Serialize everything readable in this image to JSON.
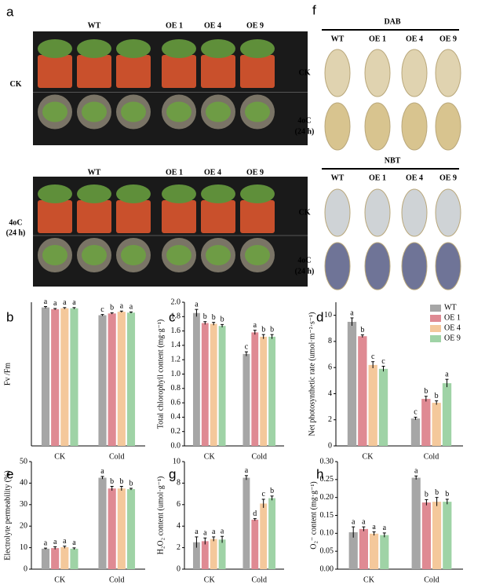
{
  "panel_a": {
    "label": "a",
    "genotypes": [
      "WT",
      "OE 1",
      "OE 4",
      "OE 9"
    ],
    "rows": [
      {
        "label": [
          "CK"
        ]
      },
      {
        "label": [
          "4oC",
          "(24 h)"
        ]
      }
    ]
  },
  "panel_f": {
    "label": "f",
    "genotypes": [
      "WT",
      "OE 1",
      "OE 4",
      "OE 9"
    ],
    "stains": [
      {
        "title": "DAB",
        "rows": [
          {
            "label": [
              "CK"
            ]
          },
          {
            "label": [
              "4oC",
              "(24 h)"
            ]
          }
        ]
      },
      {
        "title": "NBT",
        "rows": [
          {
            "label": [
              "CK"
            ]
          },
          {
            "label": [
              "4oC",
              "(24 h)"
            ]
          }
        ]
      }
    ]
  },
  "chart_data": [
    {
      "type": "bar",
      "panel_label": "b",
      "y_label": "Fv /Fm",
      "categories": [
        "CK",
        "Cold"
      ],
      "ylim": [
        0,
        0.83
      ],
      "series": [
        {
          "color": "#a6a6a6",
          "values": [
            0.8,
            0.755
          ],
          "errors": [
            0.005,
            0.004
          ],
          "letters": [
            "a",
            "c"
          ]
        },
        {
          "color": "#df8a93",
          "values": [
            0.79,
            0.765
          ],
          "errors": [
            0.004,
            0.004
          ],
          "letters": [
            "a",
            "b"
          ]
        },
        {
          "color": "#f4c89b",
          "values": [
            0.795,
            0.775
          ],
          "errors": [
            0.004,
            0.004
          ],
          "letters": [
            "a",
            "a"
          ]
        },
        {
          "color": "#9fd3a6",
          "values": [
            0.795,
            0.77
          ],
          "errors": [
            0.004,
            0.004
          ],
          "letters": [
            "a",
            "a"
          ]
        }
      ]
    },
    {
      "type": "bar",
      "panel_label": "c",
      "y_label": "Total chlorophyll content (mg·g⁻¹)",
      "categories": [
        "CK",
        "Cold"
      ],
      "ylim": [
        0,
        2.0
      ],
      "yticks": [
        {
          "value": 0,
          "label": "0.0"
        },
        0.2,
        0.4,
        0.6,
        0.8,
        {
          "value": 1,
          "label": "1.0"
        },
        1.2,
        1.4,
        1.6,
        1.8,
        {
          "value": 2,
          "label": "2.0"
        }
      ],
      "series": [
        {
          "color": "#a6a6a6",
          "values": [
            1.85,
            1.28
          ],
          "errors": [
            0.05,
            0.03
          ],
          "letters": [
            "a",
            "c"
          ]
        },
        {
          "color": "#df8a93",
          "values": [
            1.71,
            1.58
          ],
          "errors": [
            0.02,
            0.03
          ],
          "letters": [
            "b",
            "a"
          ]
        },
        {
          "color": "#f4c89b",
          "values": [
            1.7,
            1.52
          ],
          "errors": [
            0.02,
            0.03
          ],
          "letters": [
            "b",
            "b"
          ]
        },
        {
          "color": "#9fd3a6",
          "values": [
            1.67,
            1.52
          ],
          "errors": [
            0.02,
            0.03
          ],
          "letters": [
            "b",
            "b"
          ]
        }
      ]
    },
    {
      "type": "bar",
      "panel_label": "d",
      "y_label": "Net photosynthetic rate (umol·m⁻²·s⁻¹)",
      "categories": [
        "CK",
        "Cold"
      ],
      "ylim": [
        0,
        11
      ],
      "yticks": [
        0,
        2,
        4,
        6,
        8,
        10
      ],
      "legend": "upper right",
      "series": [
        {
          "name": "WT",
          "color": "#a6a6a6",
          "values": [
            9.5,
            2.1
          ],
          "errors": [
            0.3,
            0.1
          ],
          "letters": [
            "a",
            "c"
          ]
        },
        {
          "name": "OE 1",
          "color": "#df8a93",
          "values": [
            8.4,
            3.6
          ],
          "errors": [
            0.1,
            0.2
          ],
          "letters": [
            "b",
            "b"
          ]
        },
        {
          "name": "OE 4",
          "color": "#f4c89b",
          "values": [
            6.2,
            3.3
          ],
          "errors": [
            0.25,
            0.15
          ],
          "letters": [
            "c",
            "b"
          ]
        },
        {
          "name": "OE 9",
          "color": "#9fd3a6",
          "values": [
            5.9,
            4.8
          ],
          "errors": [
            0.2,
            0.3
          ],
          "letters": [
            "c",
            "a"
          ]
        }
      ]
    },
    {
      "type": "bar",
      "panel_label": "e",
      "y_label": "Electrolyte permeability (%)",
      "categories": [
        "CK",
        "Cold"
      ],
      "ylim": [
        0,
        50
      ],
      "yticks": [
        0,
        10,
        20,
        30,
        40,
        50
      ],
      "series": [
        {
          "color": "#a6a6a6",
          "values": [
            9.5,
            42.5
          ],
          "errors": [
            0.3,
            0.6
          ],
          "letters": [
            "a",
            "a"
          ]
        },
        {
          "color": "#df8a93",
          "values": [
            9.8,
            37.5
          ],
          "errors": [
            0.6,
            1
          ],
          "letters": [
            "a",
            "b"
          ]
        },
        {
          "color": "#f4c89b",
          "values": [
            10.2,
            37.5
          ],
          "errors": [
            0.5,
            1
          ],
          "letters": [
            "a",
            "b"
          ]
        },
        {
          "color": "#9fd3a6",
          "values": [
            9.5,
            37.2
          ],
          "errors": [
            0.4,
            0.4
          ],
          "letters": [
            "a",
            "b"
          ]
        }
      ]
    },
    {
      "type": "bar",
      "panel_label": "g",
      "y_label": "H₂O₂ content (umol·g⁻¹)",
      "categories": [
        "CK",
        "Cold"
      ],
      "ylim": [
        0,
        10
      ],
      "yticks": [
        0,
        2,
        4,
        6,
        8,
        10
      ],
      "series": [
        {
          "color": "#a6a6a6",
          "values": [
            2.5,
            8.5
          ],
          "errors": [
            0.5,
            0.2
          ],
          "letters": [
            "a",
            "a"
          ]
        },
        {
          "color": "#df8a93",
          "values": [
            2.6,
            4.6
          ],
          "errors": [
            0.3,
            0.1
          ],
          "letters": [
            "a",
            "d"
          ]
        },
        {
          "color": "#f4c89b",
          "values": [
            2.8,
            6.1
          ],
          "errors": [
            0.2,
            0.4
          ],
          "letters": [
            "a",
            "c"
          ]
        },
        {
          "color": "#9fd3a6",
          "values": [
            2.75,
            6.6
          ],
          "errors": [
            0.3,
            0.2
          ],
          "letters": [
            "a",
            "b"
          ]
        }
      ]
    },
    {
      "type": "bar",
      "panel_label": "h",
      "y_label": "O₂⁻ content (mg·g⁻¹)",
      "categories": [
        "CK",
        "Cold"
      ],
      "ylim": [
        0,
        0.3
      ],
      "yticks": [
        {
          "value": 0,
          "label": "0.00"
        },
        0.05,
        {
          "value": 0.1,
          "label": "0.10"
        },
        0.15,
        {
          "value": 0.2,
          "label": "0.20"
        },
        0.25,
        {
          "value": 0.3,
          "label": "0.30"
        }
      ],
      "series": [
        {
          "color": "#a6a6a6",
          "values": [
            0.103,
            0.255
          ],
          "errors": [
            0.015,
            0.005
          ],
          "letters": [
            "a",
            "a"
          ]
        },
        {
          "color": "#df8a93",
          "values": [
            0.112,
            0.186
          ],
          "errors": [
            0.006,
            0.008
          ],
          "letters": [
            "a",
            "b"
          ]
        },
        {
          "color": "#f4c89b",
          "values": [
            0.099,
            0.188
          ],
          "errors": [
            0.005,
            0.012
          ],
          "letters": [
            "a",
            "b"
          ]
        },
        {
          "color": "#9fd3a6",
          "values": [
            0.095,
            0.188
          ],
          "errors": [
            0.006,
            0.007
          ],
          "letters": [
            "a",
            "b"
          ]
        }
      ]
    }
  ]
}
